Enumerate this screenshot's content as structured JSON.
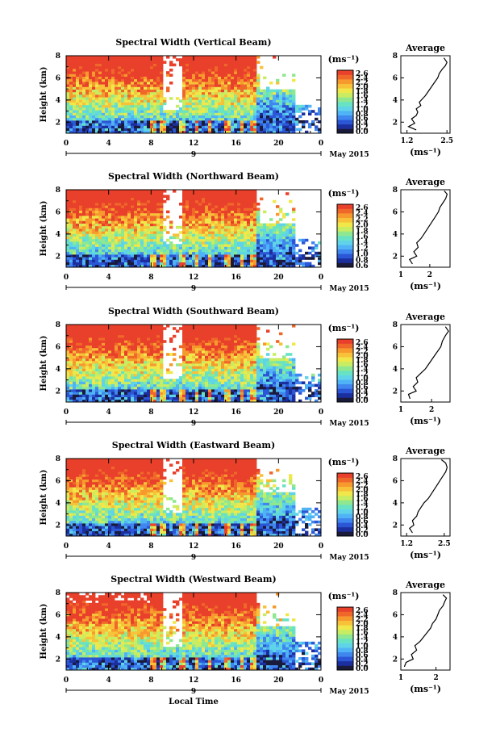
{
  "chart_data": [
    {
      "type": "heatmap",
      "title": "Spectral Width (Vertical Beam)",
      "ylabel": "Height (km)",
      "xticks": [
        "0",
        "4",
        "8",
        "12",
        "16",
        "20",
        "0"
      ],
      "xrange": [
        0,
        24
      ],
      "yticks": [
        "2",
        "4",
        "6",
        "8"
      ],
      "ylim": [
        1,
        8
      ],
      "date_label": "9",
      "month_label": "May 2015",
      "colorbar": {
        "unit": "(ms⁻¹)",
        "ticks": [
          "2.6",
          "2.4",
          "2.2",
          "2.0",
          "1.8",
          "1.6",
          "1.4",
          "1.2",
          "1.0",
          "0.8",
          "0.6",
          "0.4",
          "0.2",
          "0.0"
        ]
      },
      "average": {
        "title": "Average",
        "xlabel": "(ms⁻¹)",
        "xticks": [
          "1.2",
          "2.5"
        ],
        "xlim": [
          1.0,
          2.6
        ],
        "yticks": [
          "2",
          "4",
          "6",
          "8"
        ],
        "ylim": [
          1,
          8
        ],
        "profile": [
          [
            1.5,
            1.3
          ],
          [
            1.25,
            1.6
          ],
          [
            1.45,
            1.9
          ],
          [
            1.35,
            2.3
          ],
          [
            1.5,
            2.6
          ],
          [
            1.55,
            2.9
          ],
          [
            1.5,
            3.2
          ],
          [
            1.65,
            3.5
          ],
          [
            1.6,
            3.8
          ],
          [
            1.7,
            4.1
          ],
          [
            1.8,
            4.4
          ],
          [
            1.9,
            4.8
          ],
          [
            2.0,
            5.2
          ],
          [
            2.1,
            5.6
          ],
          [
            2.2,
            6.0
          ],
          [
            2.25,
            6.4
          ],
          [
            2.35,
            6.8
          ],
          [
            2.45,
            7.1
          ],
          [
            2.5,
            7.4
          ],
          [
            2.4,
            7.8
          ]
        ]
      }
    },
    {
      "type": "heatmap",
      "title": "Spectral Width (Northward Beam)",
      "ylabel": "Height (km)",
      "xticks": [
        "0",
        "4",
        "8",
        "12",
        "16",
        "20",
        "0"
      ],
      "xrange": [
        0,
        24
      ],
      "yticks": [
        "2",
        "4",
        "6",
        "8"
      ],
      "ylim": [
        1,
        8
      ],
      "date_label": "9",
      "month_label": "May 2015",
      "colorbar": {
        "unit": "(ms⁻¹)",
        "ticks": [
          "2.6",
          "2.4",
          "2.2",
          "2.0",
          "1.8",
          "1.6",
          "1.4",
          "1.2",
          "1.0",
          "0.8",
          "0.6"
        ]
      },
      "average": {
        "title": "Average",
        "xlabel": "(ms⁻¹)",
        "xticks": [
          "1",
          "2"
        ],
        "xlim": [
          1.0,
          2.7
        ],
        "yticks": [
          "2",
          "4",
          "6",
          "8"
        ],
        "ylim": [
          1,
          8
        ],
        "profile": [
          [
            1.4,
            1.3
          ],
          [
            1.3,
            1.7
          ],
          [
            1.55,
            2.0
          ],
          [
            1.45,
            2.4
          ],
          [
            1.6,
            2.8
          ],
          [
            1.55,
            3.2
          ],
          [
            1.7,
            3.6
          ],
          [
            1.8,
            4.0
          ],
          [
            1.9,
            4.4
          ],
          [
            2.0,
            4.8
          ],
          [
            2.1,
            5.2
          ],
          [
            2.2,
            5.6
          ],
          [
            2.3,
            6.0
          ],
          [
            2.35,
            6.4
          ],
          [
            2.45,
            6.8
          ],
          [
            2.55,
            7.2
          ],
          [
            2.6,
            7.6
          ],
          [
            2.5,
            7.9
          ]
        ]
      }
    },
    {
      "type": "heatmap",
      "title": "Spectral Width (Southward Beam)",
      "ylabel": "Height (km)",
      "xticks": [
        "0",
        "4",
        "8",
        "12",
        "16",
        "20",
        "0"
      ],
      "xrange": [
        0,
        24
      ],
      "yticks": [
        "2",
        "4",
        "6",
        "8"
      ],
      "ylim": [
        1,
        8
      ],
      "date_label": "9",
      "month_label": "May 2015",
      "colorbar": {
        "unit": "(ms⁻¹)",
        "ticks": [
          "2.6",
          "2.4",
          "2.2",
          "2.0",
          "1.8",
          "1.6",
          "1.4",
          "1.2",
          "1.0",
          "0.8",
          "0.6",
          "0.4",
          "0.2",
          "0.0"
        ]
      },
      "average": {
        "title": "Average",
        "xlabel": "(ms⁻¹)",
        "xticks": [
          "1",
          "2"
        ],
        "xlim": [
          1.0,
          2.6
        ],
        "yticks": [
          "2",
          "4",
          "6",
          "8"
        ],
        "ylim": [
          1,
          8
        ],
        "profile": [
          [
            1.3,
            1.3
          ],
          [
            1.25,
            1.7
          ],
          [
            1.5,
            2.0
          ],
          [
            1.4,
            2.4
          ],
          [
            1.55,
            2.8
          ],
          [
            1.5,
            3.2
          ],
          [
            1.65,
            3.6
          ],
          [
            1.8,
            4.0
          ],
          [
            1.9,
            4.4
          ],
          [
            2.0,
            4.8
          ],
          [
            2.1,
            5.2
          ],
          [
            2.2,
            5.6
          ],
          [
            2.3,
            6.0
          ],
          [
            2.35,
            6.5
          ],
          [
            2.45,
            7.0
          ],
          [
            2.55,
            7.4
          ],
          [
            2.45,
            7.8
          ]
        ]
      }
    },
    {
      "type": "heatmap",
      "title": "Spectral Width (Eastward Beam)",
      "ylabel": "Height (km)",
      "xticks": [
        "0",
        "4",
        "8",
        "12",
        "16",
        "20",
        "0"
      ],
      "xrange": [
        0,
        24
      ],
      "yticks": [
        "2",
        "4",
        "6",
        "8"
      ],
      "ylim": [
        1,
        8
      ],
      "date_label": "9",
      "month_label": "May 2015",
      "colorbar": {
        "unit": "(ms⁻¹)",
        "ticks": [
          "2.6",
          "2.4",
          "2.2",
          "2.0",
          "1.8",
          "1.6",
          "1.4",
          "1.2",
          "1.0",
          "0.8",
          "0.6",
          "0.4",
          "0.2",
          "0.0"
        ]
      },
      "average": {
        "title": "Average",
        "xlabel": "(ms⁻¹)",
        "xticks": [
          "1.2",
          "2.5"
        ],
        "xlim": [
          1.0,
          2.7
        ],
        "yticks": [
          "2",
          "4",
          "6",
          "8"
        ],
        "ylim": [
          1,
          8
        ],
        "profile": [
          [
            1.4,
            1.3
          ],
          [
            1.3,
            1.7
          ],
          [
            1.45,
            2.0
          ],
          [
            1.4,
            2.4
          ],
          [
            1.55,
            2.8
          ],
          [
            1.6,
            3.2
          ],
          [
            1.7,
            3.6
          ],
          [
            1.8,
            4.0
          ],
          [
            1.95,
            4.4
          ],
          [
            2.05,
            4.8
          ],
          [
            2.15,
            5.2
          ],
          [
            2.25,
            5.6
          ],
          [
            2.35,
            6.0
          ],
          [
            2.45,
            6.4
          ],
          [
            2.55,
            6.8
          ],
          [
            2.6,
            7.2
          ],
          [
            2.55,
            7.6
          ],
          [
            2.4,
            7.9
          ]
        ]
      }
    },
    {
      "type": "heatmap",
      "title": "Spectral Width (Westward Beam)",
      "ylabel": "Height (km)",
      "xlabel": "Local Time",
      "xticks": [
        "0",
        "4",
        "8",
        "12",
        "16",
        "20",
        "0"
      ],
      "xrange": [
        0,
        24
      ],
      "yticks": [
        "2",
        "4",
        "6",
        "8"
      ],
      "ylim": [
        1,
        8
      ],
      "date_label": "9",
      "month_label": "May 2015",
      "colorbar": {
        "unit": "(ms⁻¹)",
        "ticks": [
          "2.6",
          "2.4",
          "2.2",
          "2.0",
          "1.8",
          "1.6",
          "1.4",
          "1.2",
          "1.0",
          "0.8",
          "0.6",
          "0.4",
          "0.2",
          "0.0"
        ]
      },
      "average": {
        "title": "Average",
        "xlabel": "(ms⁻¹)",
        "xticks": [
          "1",
          "2"
        ],
        "xlim": [
          1.0,
          2.4
        ],
        "yticks": [
          "2",
          "4",
          "6",
          "8"
        ],
        "ylim": [
          1,
          8
        ],
        "profile": [
          [
            1.1,
            1.3
          ],
          [
            1.15,
            1.7
          ],
          [
            1.35,
            2.0
          ],
          [
            1.3,
            2.4
          ],
          [
            1.45,
            2.8
          ],
          [
            1.4,
            3.2
          ],
          [
            1.55,
            3.6
          ],
          [
            1.65,
            4.0
          ],
          [
            1.75,
            4.4
          ],
          [
            1.85,
            4.8
          ],
          [
            1.9,
            5.2
          ],
          [
            2.0,
            5.6
          ],
          [
            2.05,
            6.0
          ],
          [
            2.1,
            6.4
          ],
          [
            2.2,
            6.8
          ],
          [
            2.25,
            7.2
          ],
          [
            2.3,
            7.5
          ],
          [
            2.2,
            7.8
          ]
        ]
      }
    }
  ],
  "colors": {
    "scale": [
      "#1a1a3a",
      "#1c2f9e",
      "#2b56d6",
      "#3f86ee",
      "#4fb3f6",
      "#5fd4e8",
      "#67e3c4",
      "#8fe88f",
      "#c8ec62",
      "#f0e84a",
      "#f7c23a",
      "#f79a2e",
      "#f0672a",
      "#e8402a"
    ]
  }
}
